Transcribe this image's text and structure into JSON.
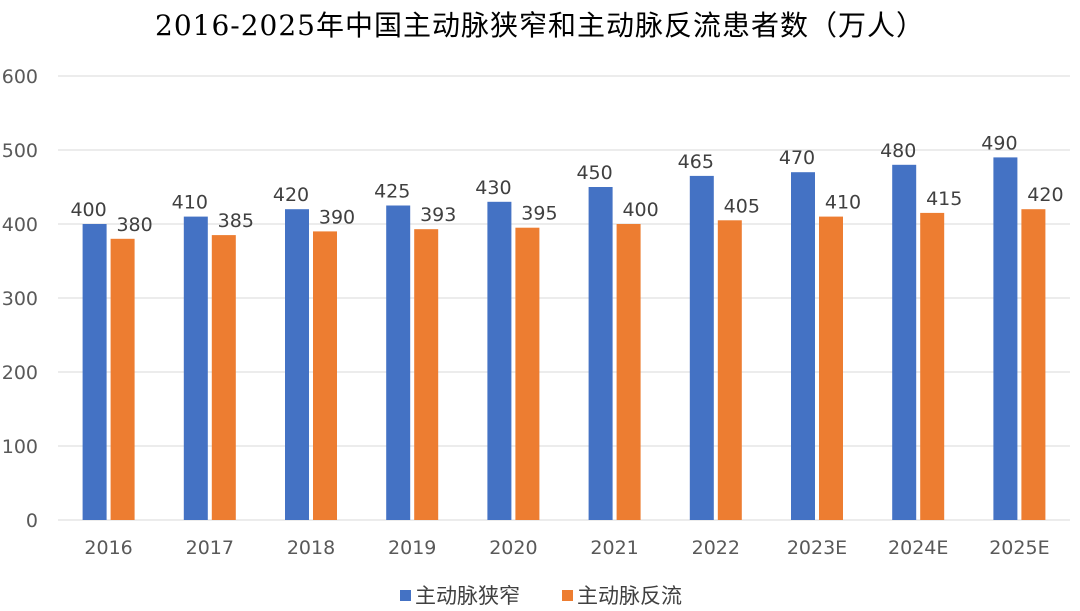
{
  "chart_data": {
    "type": "bar",
    "title": "2016-2025年中国主动脉狭窄和主动脉反流患者数（万人）",
    "categories": [
      "2016",
      "2017",
      "2018",
      "2019",
      "2020",
      "2021",
      "2022",
      "2023E",
      "2024E",
      "2025E"
    ],
    "series": [
      {
        "name": "主动脉狭窄",
        "color": "#4472C4",
        "values": [
          400,
          410,
          420,
          425,
          430,
          450,
          465,
          470,
          480,
          490
        ]
      },
      {
        "name": "主动脉反流",
        "color": "#ED7D31",
        "values": [
          380,
          385,
          390,
          393,
          395,
          400,
          405,
          410,
          415,
          420
        ]
      }
    ],
    "ylim": [
      0,
      600
    ],
    "yticks": [
      0,
      100,
      200,
      300,
      400,
      500,
      600
    ],
    "xlabel": "",
    "ylabel": "",
    "grid": true,
    "legend_position": "bottom",
    "gridline_color": "#D9D9D9"
  }
}
